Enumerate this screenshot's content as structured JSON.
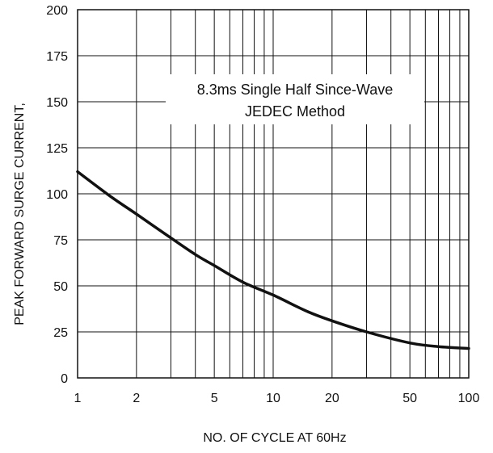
{
  "chart_data": {
    "type": "line",
    "title": "",
    "xlabel": "NO. OF CYCLE AT 60Hz",
    "ylabel": "PEAK FORWARD SURGE CURRENT,",
    "x_scale": "log",
    "xlim": [
      1,
      100
    ],
    "ylim": [
      0,
      200
    ],
    "grid": true,
    "x_ticks": [
      {
        "value": 1,
        "label": "1"
      },
      {
        "value": 2,
        "label": "2"
      },
      {
        "value": 5,
        "label": "5"
      },
      {
        "value": 10,
        "label": "10"
      },
      {
        "value": 20,
        "label": "20"
      },
      {
        "value": 50,
        "label": "50"
      },
      {
        "value": 100,
        "label": "100"
      }
    ],
    "y_ticks": [
      {
        "value": 0,
        "label": "0"
      },
      {
        "value": 25,
        "label": "25"
      },
      {
        "value": 50,
        "label": "50"
      },
      {
        "value": 75,
        "label": "75"
      },
      {
        "value": 100,
        "label": "100"
      },
      {
        "value": 125,
        "label": "125"
      },
      {
        "value": 150,
        "label": "150"
      },
      {
        "value": 175,
        "label": "175"
      },
      {
        "value": 200,
        "label": "200"
      }
    ],
    "annotation": {
      "line1": "8.3ms Single Half Since-Wave",
      "line2": "JEDEC Method"
    },
    "series": [
      {
        "color": "#111111",
        "x": [
          1,
          1.5,
          2,
          3,
          4,
          5,
          7,
          10,
          15,
          20,
          30,
          50,
          70,
          100
        ],
        "y": [
          112,
          98,
          89,
          76,
          67,
          61,
          52,
          45,
          36,
          31,
          25,
          19,
          17,
          16
        ]
      }
    ]
  }
}
